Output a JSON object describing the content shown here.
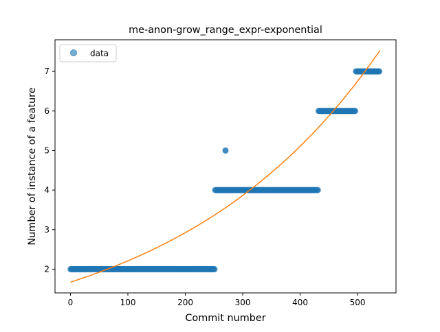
{
  "chart_data": {
    "type": "scatter",
    "title": "me-anon-grow_range_expr-exponential",
    "xlabel": "Commit number",
    "ylabel": "Number of instance of a feature",
    "xlim": [
      -26.95,
      566.95
    ],
    "ylim": [
      1.4,
      7.8
    ],
    "xticks": [
      0,
      100,
      200,
      300,
      400,
      500
    ],
    "yticks": [
      2,
      3,
      4,
      5,
      6,
      7
    ],
    "grid": false,
    "legend": {
      "position": "top-left",
      "entries": [
        "data"
      ]
    },
    "series": [
      {
        "name": "data",
        "kind": "scatter",
        "color": "#1f77b4",
        "segments": [
          {
            "x_start": 0,
            "x_end": 252,
            "y": 2
          },
          {
            "x_start": 252,
            "x_end": 432,
            "y": 4
          },
          {
            "x_start": 432,
            "x_end": 497,
            "y": 6
          },
          {
            "x_start": 497,
            "x_end": 539,
            "y": 7
          }
        ],
        "points": [
          {
            "x": 270,
            "y": 5
          }
        ]
      },
      {
        "kind": "line",
        "color": "#ff7f0e",
        "fit": {
          "model": "exponential",
          "a": 1.672,
          "b": 0.002792
        },
        "x_range": [
          0,
          539
        ]
      }
    ]
  }
}
